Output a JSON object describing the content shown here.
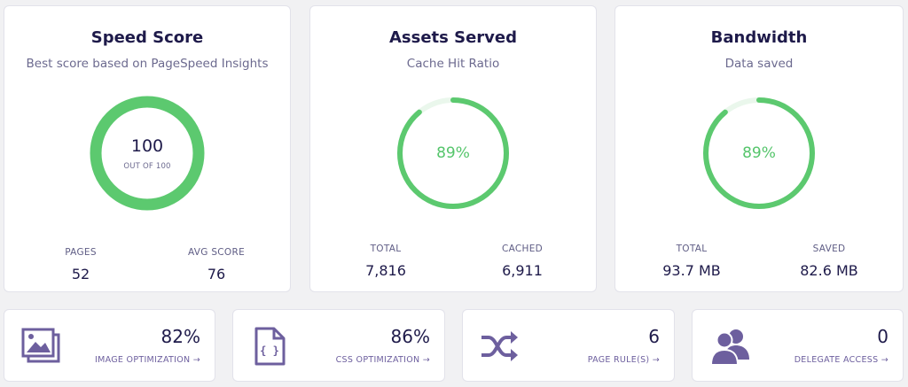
{
  "speed": {
    "title": "Speed Score",
    "subtitle": "Best score based on PageSpeed Insights",
    "score": "100",
    "score_sub": "OUT OF 100",
    "progress": 1.0,
    "pages_label": "PAGES",
    "pages_value": "52",
    "avg_label": "AVG SCORE",
    "avg_value": "76"
  },
  "assets": {
    "title": "Assets Served",
    "subtitle": "Cache Hit Ratio",
    "percent": "89%",
    "progress": 0.89,
    "total_label": "TOTAL",
    "total_value": "7,816",
    "cached_label": "CACHED",
    "cached_value": "6,911"
  },
  "bandwidth": {
    "title": "Bandwidth",
    "subtitle": "Data saved",
    "percent": "89%",
    "progress": 0.89,
    "total_label": "TOTAL",
    "total_value": "93.7 MB",
    "saved_label": "SAVED",
    "saved_value": "82.6 MB"
  },
  "tiles": [
    {
      "icon": "image-icon",
      "value": "82%",
      "label": "IMAGE OPTIMIZATION →"
    },
    {
      "icon": "css-file-icon",
      "value": "86%",
      "label": "CSS OPTIMIZATION →"
    },
    {
      "icon": "shuffle-icon",
      "value": "6",
      "label": "PAGE RULE(S) →"
    },
    {
      "icon": "users-icon",
      "value": "0",
      "label": "DELEGATE ACCESS →"
    }
  ],
  "colors": {
    "ring": "#5cc96f",
    "ring_track": "#eaf7ec",
    "icon": "#6d5f9e"
  }
}
